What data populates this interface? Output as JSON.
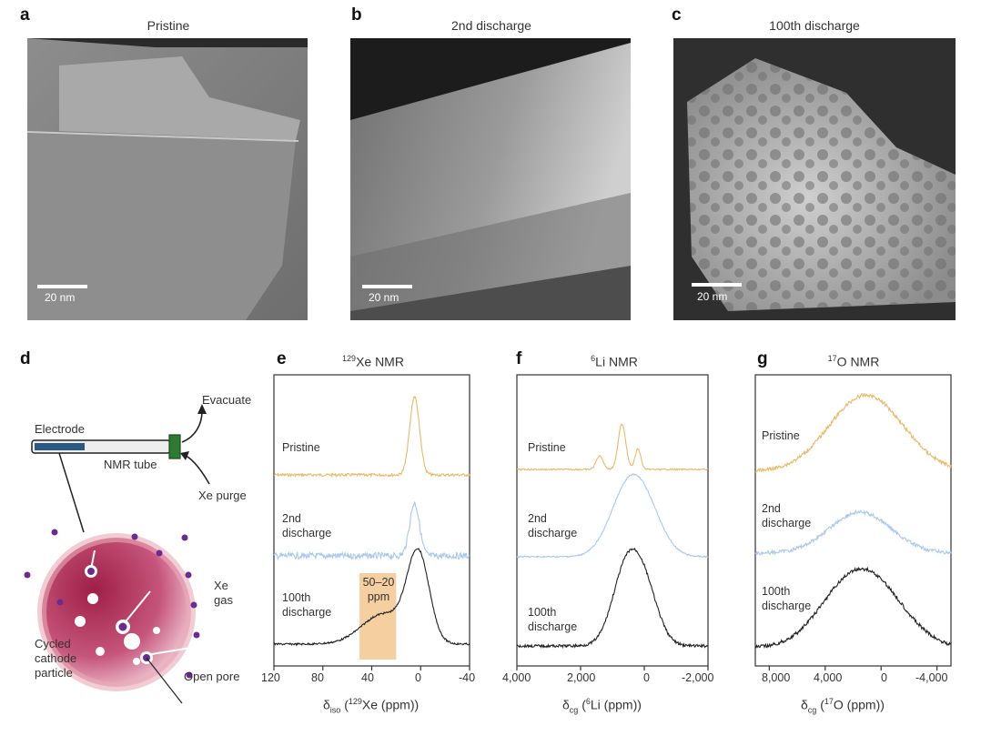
{
  "panels": {
    "a": {
      "letter": "a",
      "title": "Pristine",
      "scale": "20 nm"
    },
    "b": {
      "letter": "b",
      "title": "2nd discharge",
      "scale": "20 nm"
    },
    "c": {
      "letter": "c",
      "title": "100th discharge",
      "scale": "20 nm"
    },
    "d": {
      "letter": "d",
      "electrode": "Electrode",
      "nmr_tube": "NMR tube",
      "evacuate": "Evacuate",
      "xe_purge": "Xe purge",
      "xe_gas_1": "Xe",
      "xe_gas_2": "gas",
      "particle_1": "Cycled",
      "particle_2": "cathode",
      "particle_3": "particle",
      "open_pore": "Open pore"
    },
    "e": {
      "letter": "e",
      "title_sup": "129",
      "title_main": "Xe NMR",
      "labels": {
        "pristine": "Pristine",
        "second_1": "2nd",
        "second_2": "discharge",
        "hundredth_1": "100th",
        "hundredth_2": "discharge"
      },
      "highlight_1": "50–20",
      "highlight_2": "ppm",
      "ticks": [
        "120",
        "80",
        "40",
        "0",
        "-40"
      ],
      "xlabel": {
        "delta": "δ",
        "sub": "iso",
        "open": " (",
        "sup": "129",
        "rest": "Xe (ppm))"
      }
    },
    "f": {
      "letter": "f",
      "title_sup": "6",
      "title_main": "Li NMR",
      "labels": {
        "pristine": "Pristine",
        "second_1": "2nd",
        "second_2": "discharge",
        "hundredth_1": "100th",
        "hundredth_2": "discharge"
      },
      "ticks": [
        "4,000",
        "2,000",
        "0",
        "-2,000"
      ],
      "xlabel": {
        "delta": "δ",
        "sub": "cg",
        "open": " (",
        "sup": "6",
        "rest": "Li (ppm))"
      }
    },
    "g": {
      "letter": "g",
      "title_sup": "17",
      "title_main": "O NMR",
      "labels": {
        "pristine": "Pristine",
        "second_1": "2nd",
        "second_2": "discharge",
        "hundredth_1": "100th",
        "hundredth_2": "discharge"
      },
      "ticks": [
        "8,000",
        "4,000",
        "0",
        "-4,000"
      ],
      "xlabel": {
        "delta": "δ",
        "sub": "cg",
        "open": " (",
        "sup": "17",
        "rest": "O (ppm))"
      }
    }
  },
  "colors": {
    "pristine": "#e8b96a",
    "second": "#a9c8ea",
    "hundredth": "#222222",
    "highlight": "#f6cfa0",
    "pore": "#6a2c91",
    "particle": "#b8365a"
  },
  "chart_data": [
    {
      "type": "line",
      "xlim": [
        120,
        -40
      ],
      "x_unit": "ppm",
      "series": [
        {
          "name": "Pristine",
          "peaks": [
            [
              5,
              1.0
            ]
          ]
        },
        {
          "name": "2nd discharge",
          "peaks": [
            [
              5,
              1.0
            ]
          ]
        },
        {
          "name": "100th discharge",
          "peaks": [
            [
              2,
              1.0
            ],
            [
              30,
              0.35
            ]
          ]
        }
      ]
    },
    {
      "type": "line",
      "xlim": [
        4000,
        -2000
      ],
      "x_unit": "ppm",
      "series": [
        {
          "name": "Pristine",
          "peaks": [
            [
              700,
              1.0
            ],
            [
              200,
              0.45
            ],
            [
              1400,
              0.3
            ]
          ]
        },
        {
          "name": "2nd discharge",
          "peaks": [
            [
              600,
              0.8
            ],
            [
              0,
              0.7
            ]
          ]
        },
        {
          "name": "100th discharge",
          "peaks": [
            [
              600,
              1.0
            ],
            [
              0,
              0.8
            ]
          ]
        }
      ]
    },
    {
      "type": "line",
      "xlim": [
        9000,
        -5000
      ],
      "x_unit": "ppm",
      "series": [
        {
          "name": "Pristine",
          "peaks": [
            [
              2000,
              1.0
            ],
            [
              0,
              0.9
            ]
          ]
        },
        {
          "name": "2nd discharge",
          "peaks": [
            [
              1500,
              1.0
            ]
          ]
        },
        {
          "name": "100th discharge",
          "peaks": [
            [
              2500,
              1.0
            ],
            [
              0,
              0.85
            ]
          ]
        }
      ]
    }
  ]
}
